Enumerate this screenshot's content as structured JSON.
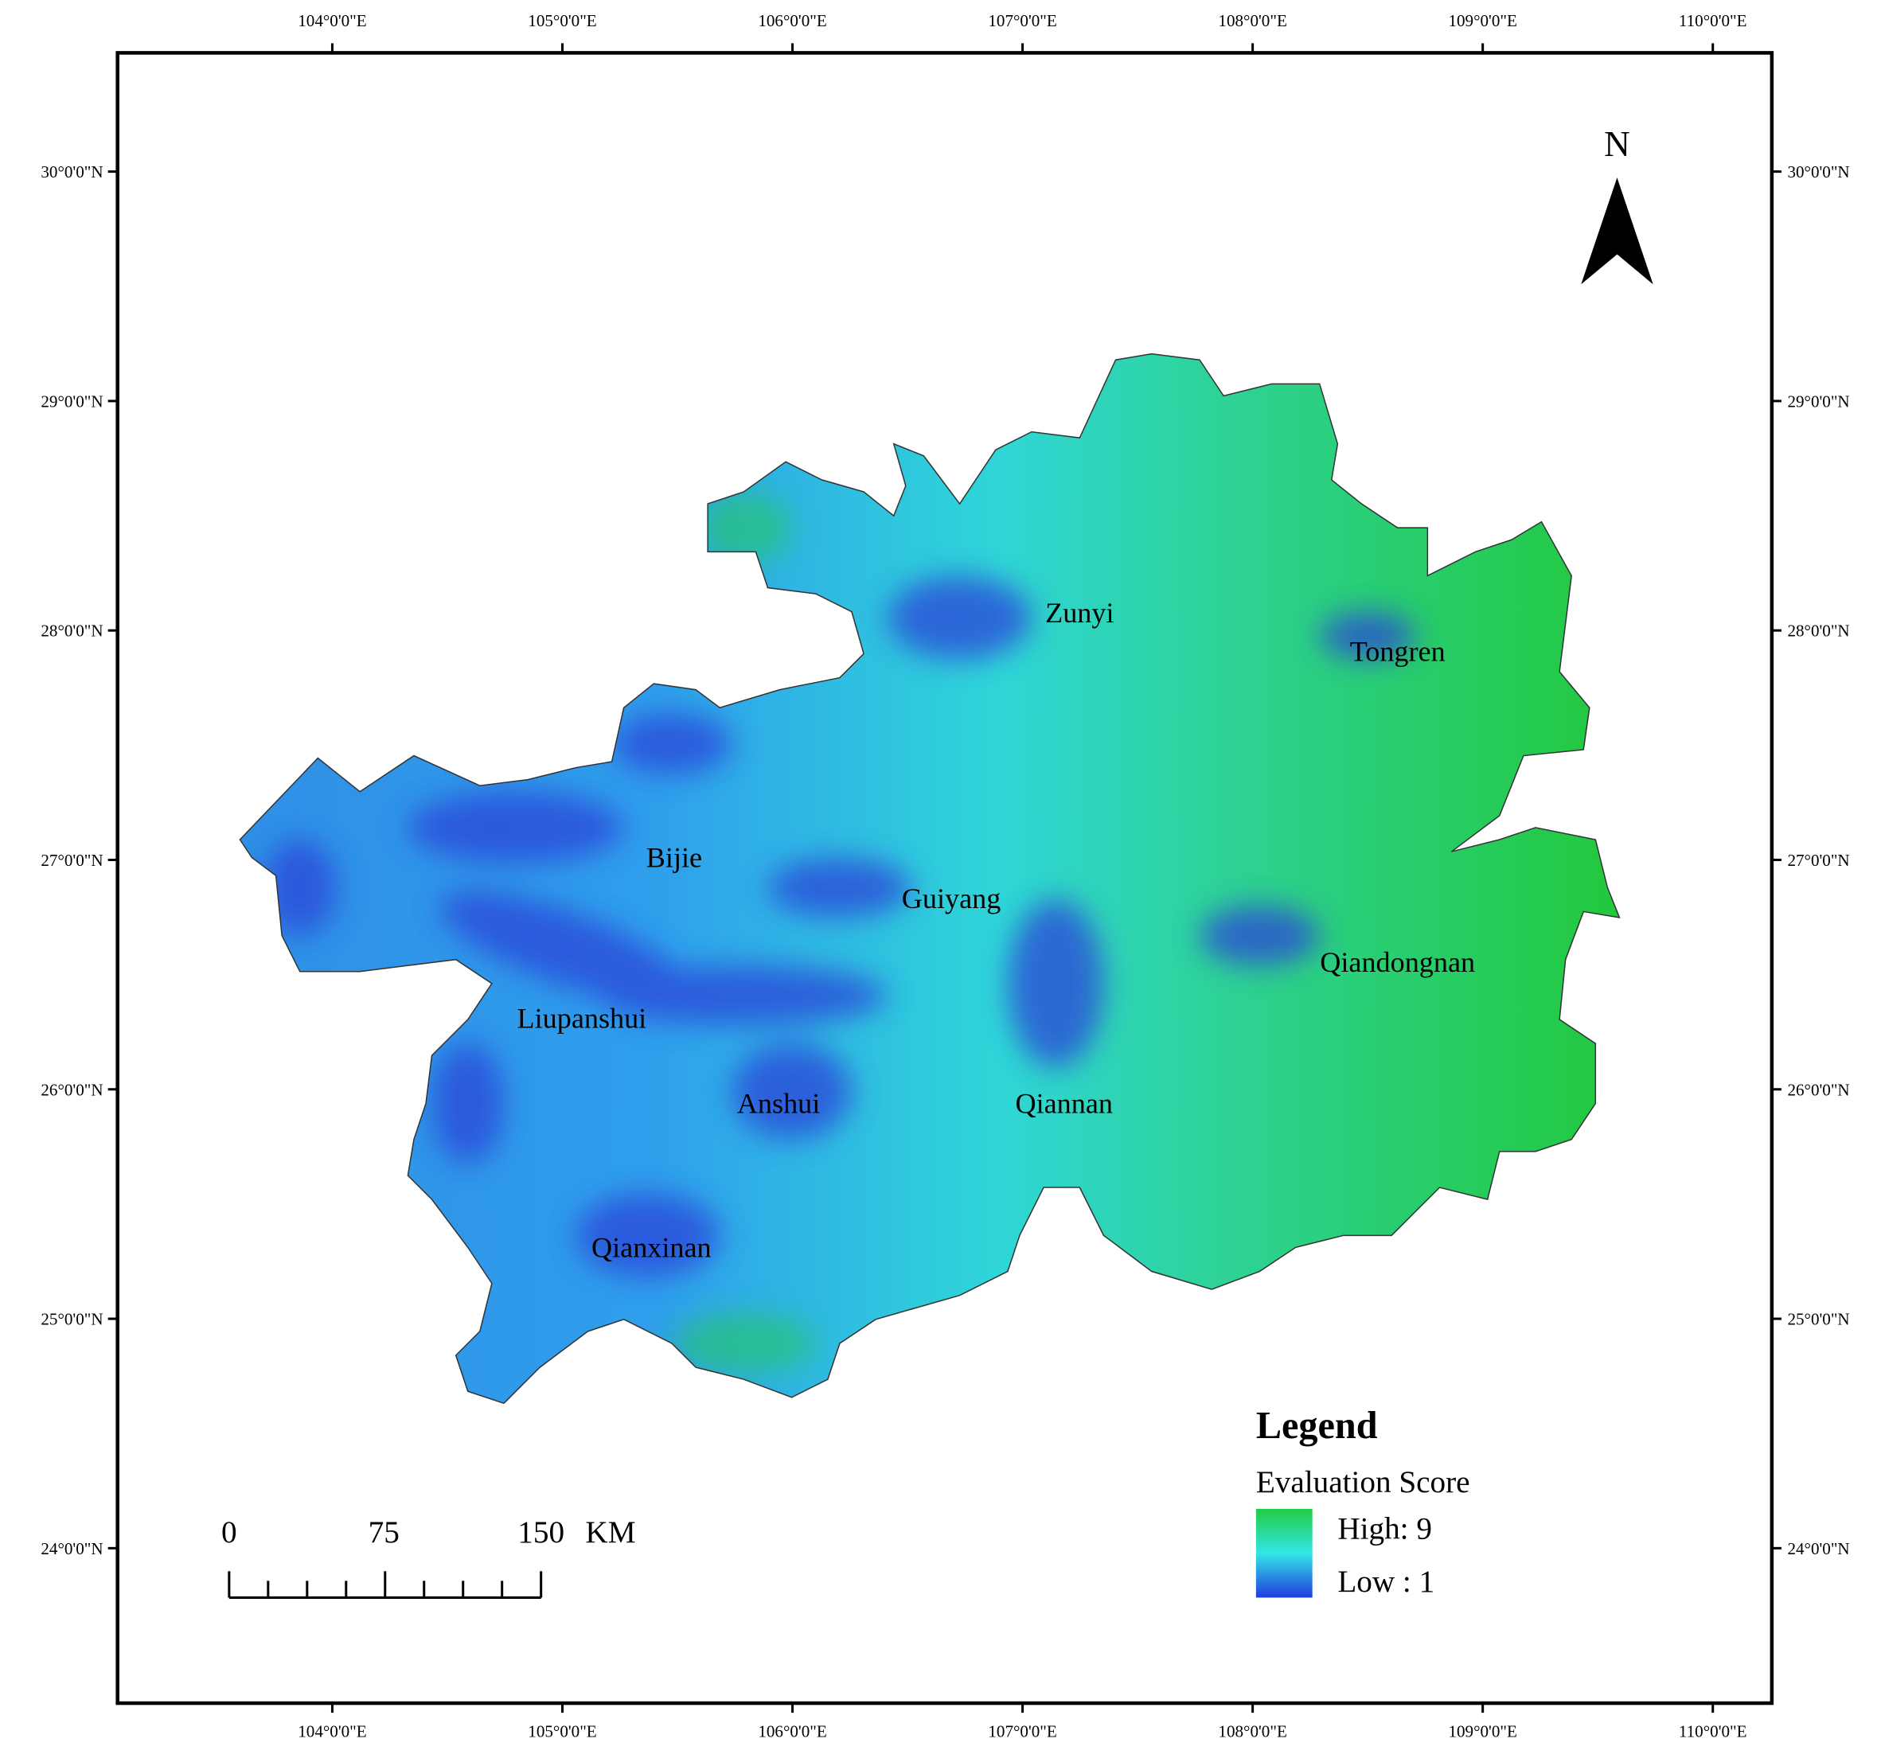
{
  "map": {
    "lon_ticks": [
      "104°0'0\"E",
      "105°0'0\"E",
      "106°0'0\"E",
      "107°0'0\"E",
      "108°0'0\"E",
      "109°0'0\"E",
      "110°0'0\"E"
    ],
    "lat_ticks": [
      "30°0'0\"N",
      "29°0'0\"N",
      "28°0'0\"N",
      "27°0'0\"N",
      "26°0'0\"N",
      "25°0'0\"N",
      "24°0'0\"N"
    ],
    "regions": [
      "Zunyi",
      "Tongren",
      "Bijie",
      "Guiyang",
      "Qiandongnan",
      "Liupanshui",
      "Anshui",
      "Qiannan",
      "Qianxinan"
    ],
    "north_label": "N",
    "legend": {
      "title": "Legend",
      "subtitle": "Evaluation Score",
      "high": "High: 9",
      "low": "Low : 1"
    },
    "scale_bar": {
      "labels": [
        "0",
        "75",
        "150"
      ],
      "unit": "KM"
    }
  }
}
